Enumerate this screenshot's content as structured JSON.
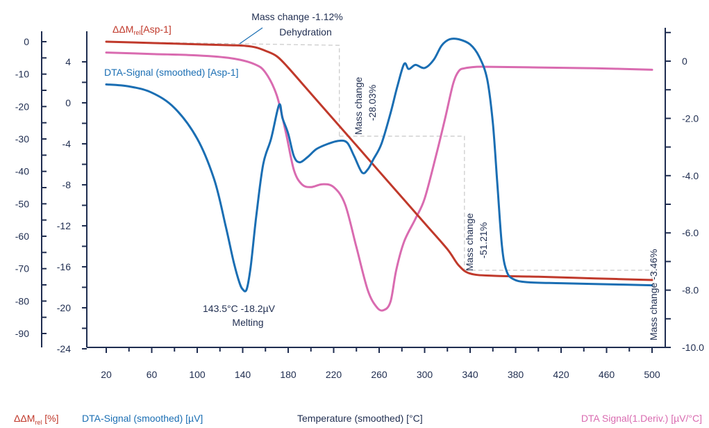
{
  "chart_data": {
    "type": "line",
    "colors": {
      "mass": "#c0392b",
      "dta": "#1a6eb3",
      "deriv": "#d96bb0",
      "axis": "#1f2d50",
      "guide": "#c8c8c8"
    },
    "xaxis": {
      "ticks": [
        20,
        60,
        100,
        140,
        180,
        220,
        260,
        300,
        340,
        380,
        420,
        460,
        500
      ]
    },
    "axes": {
      "mass": {
        "ticks": [
          0,
          -10,
          -20,
          -30,
          -40,
          -50,
          -60,
          -70,
          -80,
          -90
        ],
        "labels": [
          "0",
          "-10",
          "-20",
          "-30",
          "-40",
          "-50",
          "-60",
          "-70",
          "-80",
          "-90"
        ]
      },
      "dta": {
        "ticks": [
          4,
          0,
          -4,
          -8,
          -12,
          -16,
          -20,
          -24
        ],
        "labels": [
          "4",
          "0",
          "-4",
          "-8",
          "-12",
          "-16",
          "-20",
          "-24"
        ]
      },
      "deriv": {
        "ticks": [
          0,
          -2,
          -4,
          -6,
          -8,
          -10
        ],
        "labels": [
          "0",
          "-2.0",
          "-4.0",
          "-6.0",
          "-8.0",
          "-10.0"
        ]
      }
    },
    "legend": {
      "mass_prefix": "ΔΔM",
      "mass_sub": "rel",
      "mass_suffix": "[Asp-1]",
      "dta": "DTA-Signal (smoothed) [Asp-1]"
    },
    "annotations": {
      "dehydration_l1": "Mass change -1.12%",
      "dehydration_l2": "Dehydration",
      "step2_l1": "Mass change",
      "step2_l2": "-28.03%",
      "step3_l1": "Mass change",
      "step3_l2": "-51.21%",
      "step4": "Mass change -3.46%",
      "melting_l1": "143.5°C -18.2µV",
      "melting_l2": "Melting"
    },
    "footer": {
      "mass_prefix": "ΔΔM",
      "mass_sub": "rel",
      "mass_suffix": " [%]",
      "dta": "DTA-Signal (smoothed) [µV]",
      "temperature": "Temperature (smoothed) [°C]",
      "deriv": "DTA Signal(1.Deriv.) [µV/°C]"
    },
    "series": [
      {
        "key": "mass",
        "x": [
          20,
          60,
          100,
          130,
          143,
          152,
          160,
          170,
          180,
          200,
          220,
          240,
          260,
          280,
          300,
          320,
          330,
          340,
          360,
          400,
          450,
          500
        ],
        "y": [
          0,
          -0.4,
          -0.8,
          -1.1,
          -1.3,
          -1.8,
          -2.8,
          -4.5,
          -8,
          -16,
          -24,
          -32,
          -40,
          -48,
          -56,
          -64,
          -69,
          -71.5,
          -72.2,
          -72.5,
          -73,
          -73.5
        ]
      },
      {
        "key": "dta",
        "x": [
          20,
          40,
          60,
          80,
          100,
          115,
          125,
          132,
          137,
          140,
          143.5,
          147,
          152,
          158,
          165,
          172,
          175,
          180,
          185,
          190,
          197,
          205,
          215,
          225,
          232,
          238,
          245,
          250,
          255,
          262,
          270,
          276,
          282,
          286,
          292,
          300,
          308,
          315,
          322,
          330,
          340,
          348,
          355,
          360,
          364,
          368,
          372,
          378,
          390,
          420,
          460,
          500
        ],
        "y": [
          1.8,
          1.6,
          1,
          -0.5,
          -3.5,
          -7.5,
          -12,
          -15.5,
          -17.5,
          -18.2,
          -18.2,
          -16,
          -11,
          -6,
          -3.5,
          -0.2,
          -1.5,
          -3,
          -5.2,
          -5.8,
          -5.3,
          -4.5,
          -4,
          -3.7,
          -3.9,
          -5.2,
          -6.8,
          -6.5,
          -5.5,
          -4,
          -1,
          1.6,
          3.8,
          3.3,
          3.7,
          3.4,
          4.2,
          5.6,
          6.2,
          6.2,
          5.7,
          4.5,
          2.3,
          -2,
          -8,
          -14,
          -16.4,
          -17.2,
          -17.5,
          -17.6,
          -17.7,
          -17.8
        ]
      },
      {
        "key": "deriv",
        "x": [
          20,
          60,
          100,
          130,
          150,
          160,
          170,
          178,
          185,
          192,
          200,
          210,
          220,
          230,
          240,
          250,
          258,
          264,
          270,
          275,
          282,
          292,
          300,
          310,
          318,
          325,
          330,
          335,
          345,
          360,
          400,
          450,
          500
        ],
        "y": [
          0.3,
          0.25,
          0.2,
          0.1,
          -0.1,
          -0.4,
          -1.2,
          -2.5,
          -3.8,
          -4.3,
          -4.4,
          -4.3,
          -4.4,
          -5,
          -6.5,
          -8,
          -8.6,
          -8.7,
          -8.4,
          -7.3,
          -6.3,
          -5.5,
          -4.8,
          -3.3,
          -2,
          -0.8,
          -0.35,
          -0.25,
          -0.2,
          -0.2,
          -0.22,
          -0.25,
          -0.3
        ]
      }
    ]
  }
}
